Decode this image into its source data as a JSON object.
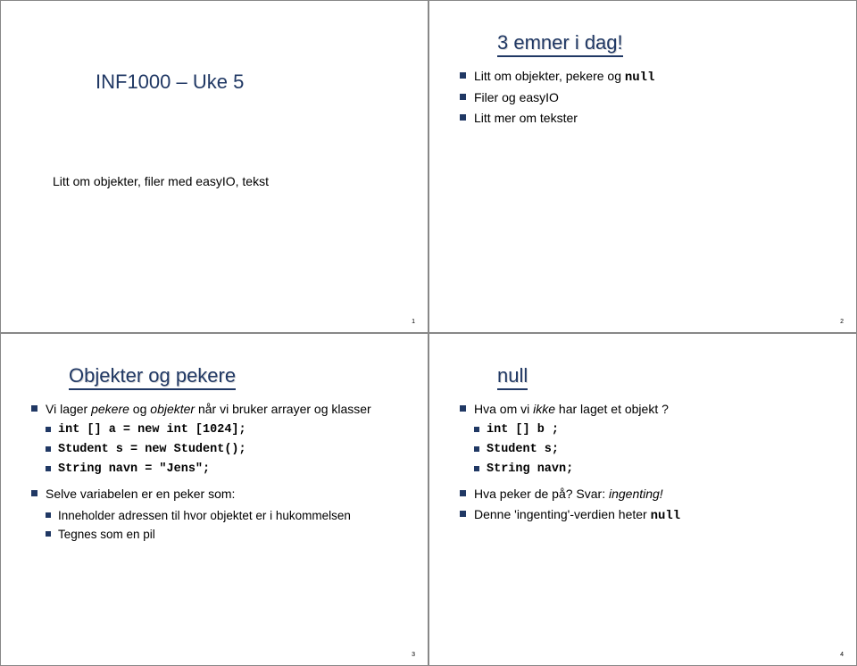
{
  "colors": {
    "title": "#203864",
    "bullet": "#203864",
    "text": "#000000",
    "border": "#888888",
    "background": "#ffffff"
  },
  "slides": {
    "s1": {
      "title": "INF1000 – Uke 5",
      "subtitle": "Litt om objekter, filer med easyIO, tekst",
      "page": "1"
    },
    "s2": {
      "title": "3 emner i dag!",
      "b1_a": "Litt om objekter, pekere og ",
      "b1_b": "null",
      "b2": "Filer og easyIO",
      "b3": "Litt mer om tekster",
      "page": "2"
    },
    "s3": {
      "title": "Objekter og pekere",
      "b1_a": "Vi lager ",
      "b1_b": "pekere",
      "b1_c": " og ",
      "b1_d": "objekter",
      "b1_e": " når vi bruker arrayer og klasser",
      "c1": "int [] a = new int [1024];",
      "c2": "Student s = new Student();",
      "c3": "String navn = \"Jens\";",
      "b2": "Selve variabelen er en peker som:",
      "s2a": "Inneholder adressen til hvor objektet er i hukommelsen",
      "s2b": "Tegnes som en pil",
      "page": "3"
    },
    "s4": {
      "title": "null",
      "b1_a": "Hva om vi ",
      "b1_b": "ikke",
      "b1_c": " har laget et objekt ?",
      "c1": "int [] b ;",
      "c2": "Student s;",
      "c3": "String navn;",
      "b2_a": "Hva peker de på?  Svar: ",
      "b2_b": "ingenting!",
      "b3_a": "Denne 'ingenting'-verdien heter ",
      "b3_b": "null",
      "page": "4"
    }
  }
}
